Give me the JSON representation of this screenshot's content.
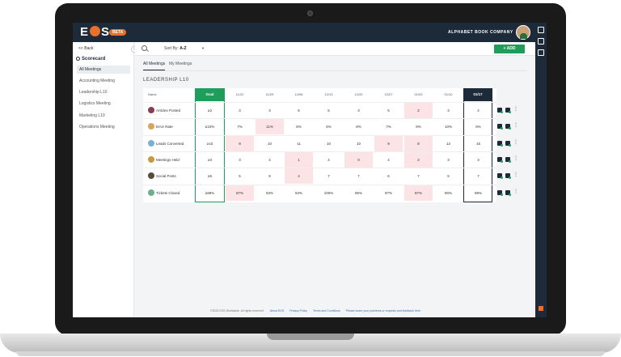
{
  "app": {
    "logo_text": "EOS",
    "beta_label": "BETA",
    "company": "ALPHABET BOOK COMPANY"
  },
  "sidebar": {
    "back_label": "Back",
    "section_title": "Scorecard",
    "items": [
      {
        "label": "All Meetings",
        "active": true
      },
      {
        "label": "Accounting Meeting",
        "active": false
      },
      {
        "label": "Leadership L10",
        "active": false
      },
      {
        "label": "Logistics Meeting",
        "active": false
      },
      {
        "label": "Marketing L10",
        "active": false
      },
      {
        "label": "Operations Meeting",
        "active": false
      }
    ]
  },
  "toolbar": {
    "sort_prefix": "Sort By:",
    "sort_value": "A-Z",
    "add_label": "+ ADD"
  },
  "tabs": [
    {
      "label": "All Meetings",
      "active": true
    },
    {
      "label": "My Meetings",
      "active": false
    }
  ],
  "section_title": "LEADERSHIP L10",
  "table": {
    "name_header": "Name",
    "goal_header": "Goal",
    "dates": [
      "11/22",
      "11/29",
      "12/06",
      "12/13",
      "12/20",
      "12/27",
      "01/03",
      "01/10",
      "01/17"
    ],
    "rows": [
      {
        "name": "Articles Posted",
        "avatar_color": "#8b3b5a",
        "goal": "≥3",
        "values": [
          "3",
          "3",
          "6",
          "5",
          "3",
          "5",
          "2",
          "3",
          "4"
        ],
        "red": [
          false,
          false,
          false,
          false,
          false,
          false,
          true,
          false,
          false
        ]
      },
      {
        "name": "Error Rate",
        "avatar_color": "#d9a55a",
        "goal": "≤10%",
        "values": [
          "7%",
          "11%",
          "8%",
          "6%",
          "8%",
          "7%",
          "9%",
          "10%",
          "8%"
        ],
        "red": [
          false,
          true,
          false,
          false,
          false,
          false,
          false,
          false,
          false
        ]
      },
      {
        "name": "Leads Converted",
        "avatar_color": "#7ab0d6",
        "goal": "≥10",
        "values": [
          "9",
          "10",
          "11",
          "10",
          "10",
          "9",
          "8",
          "12",
          "15"
        ],
        "red": [
          true,
          false,
          false,
          false,
          false,
          true,
          true,
          false,
          false
        ]
      },
      {
        "name": "Meetings Held",
        "avatar_color": "#c89a3a",
        "goal": "≥3",
        "values": [
          "3",
          "4",
          "1",
          "4",
          "0",
          "4",
          "2",
          "3",
          "3"
        ],
        "red": [
          false,
          false,
          true,
          false,
          true,
          false,
          true,
          false,
          false
        ]
      },
      {
        "name": "Social Posts",
        "avatar_color": "#5a4a3a",
        "goal": "≥5",
        "values": [
          "5",
          "9",
          "4",
          "7",
          "7",
          "6",
          "7",
          "5",
          "7"
        ],
        "red": [
          false,
          false,
          true,
          false,
          false,
          false,
          false,
          false,
          false
        ]
      },
      {
        "name": "Tickets Closed",
        "avatar_color": "#6bb08a",
        "goal": "≥88%",
        "values": [
          "87%",
          "93%",
          "94%",
          "100%",
          "95%",
          "97%",
          "87%",
          "90%",
          "99%"
        ],
        "red": [
          true,
          false,
          false,
          false,
          false,
          false,
          true,
          false,
          false
        ]
      }
    ]
  },
  "footer": {
    "copyright": "©2023 EOS Worldwide. All rights reserved.",
    "links": [
      "About EOS",
      "Privacy Policy",
      "Terms and Conditions",
      "Please share your problems or requests and feedback here"
    ]
  }
}
